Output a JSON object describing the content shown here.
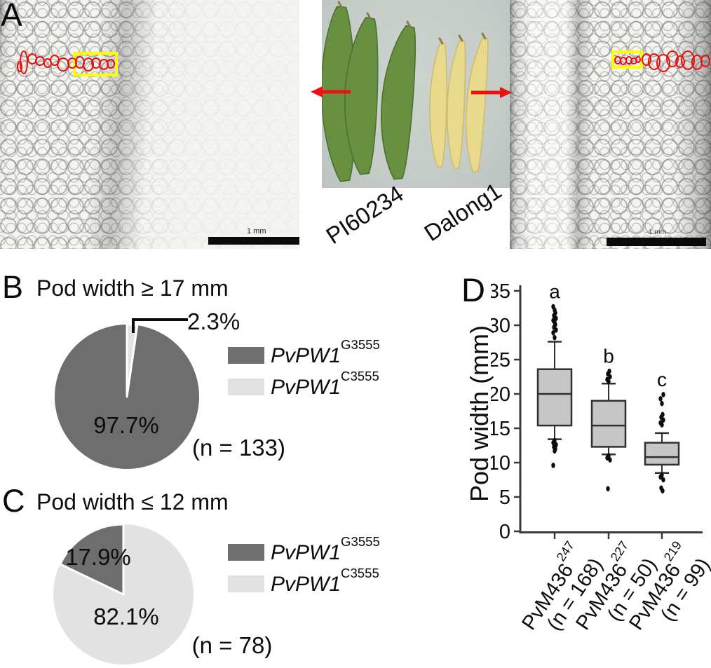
{
  "panels": {
    "a": "A",
    "b": "B",
    "c": "C",
    "d": "D"
  },
  "panelA": {
    "photo_labels": {
      "left": "PI60234",
      "right": "Dalong1"
    },
    "scale_bars": {
      "left": "1 mm",
      "right": "1 mm"
    },
    "colors": {
      "cell_outline": "#e8100c",
      "highlight_box": "#ffff00",
      "arrow": "#ee1111",
      "pod_green": "#679140",
      "pod_green_dark": "#4d702e",
      "pod_yellow": "#e9d98c",
      "pod_yellow_dark": "#cdbd6c",
      "photo_bg": "#c7cdc9"
    }
  },
  "chart_data": [
    {
      "type": "pie",
      "panel": "B",
      "title": "Pod width ≥ 17 mm",
      "n_label": "(n = 133)",
      "slices": [
        {
          "label_base": "PvPW1",
          "label_sup": "G3555",
          "value": 97.7,
          "display": "97.7%",
          "color": "#6e6e6e"
        },
        {
          "label_base": "PvPW1",
          "label_sup": "C3555",
          "value": 2.3,
          "display": "2.3%",
          "color": "#e2e2e2"
        }
      ],
      "legend_position": "right",
      "small_slice_direction": "clockwise-from-top"
    },
    {
      "type": "pie",
      "panel": "C",
      "title": "Pod width ≤ 12 mm",
      "n_label": "(n = 78)",
      "slices": [
        {
          "label_base": "PvPW1",
          "label_sup": "G3555",
          "value": 17.9,
          "display": "17.9%",
          "color": "#6e6e6e"
        },
        {
          "label_base": "PvPW1",
          "label_sup": "C3555",
          "value": 82.1,
          "display": "82.1%",
          "color": "#e2e2e2"
        }
      ],
      "legend_position": "right",
      "small_slice_direction": "counterclockwise-from-top"
    },
    {
      "type": "box",
      "panel": "D",
      "ylabel": "Pod width (mm)",
      "ylim": [
        0,
        35
      ],
      "yticks": [
        0,
        5,
        10,
        15,
        20,
        25,
        30,
        35
      ],
      "box_fill": "#c6c6c6",
      "box_stroke": "#2f2f2f",
      "outlier_color": "#0c0c0c",
      "groups": [
        {
          "name_base": "PvM436",
          "name_sup": "247",
          "n_label": "(n = 168)",
          "letter": "a",
          "whisker_low": 13.4,
          "q1": 15.4,
          "median": 20.0,
          "q3": 23.6,
          "whisker_high": 27.6,
          "outliers_high": [
            28.2,
            28.9,
            29.3,
            29.7,
            30.1,
            30.4,
            30.7,
            31.0,
            31.4,
            31.8,
            32.2,
            32.7
          ],
          "outliers_low": [
            13.2,
            12.9,
            12.6,
            12.3,
            12.0,
            11.7,
            9.6
          ]
        },
        {
          "name_base": "PvM436",
          "name_sup": "227",
          "n_label": "(n = 50)",
          "letter": "b",
          "whisker_low": 11.2,
          "q1": 12.3,
          "median": 15.4,
          "q3": 19.0,
          "whisker_high": 21.5,
          "outliers_high": [
            21.8,
            22.1,
            22.5,
            22.9,
            23.3
          ],
          "outliers_low": [
            11.0,
            10.7,
            10.4,
            6.2
          ]
        },
        {
          "name_base": "PvM436",
          "name_sup": "219",
          "n_label": "(n = 99)",
          "letter": "c",
          "whisker_low": 8.5,
          "q1": 9.7,
          "median": 10.8,
          "q3": 12.9,
          "whisker_high": 14.3,
          "outliers_high": [
            15.5,
            15.8,
            16.2,
            16.6,
            17.0,
            18.6,
            19.3,
            19.9
          ],
          "outliers_low": [
            8.2,
            7.9,
            7.5,
            6.3,
            5.9
          ]
        }
      ]
    }
  ]
}
